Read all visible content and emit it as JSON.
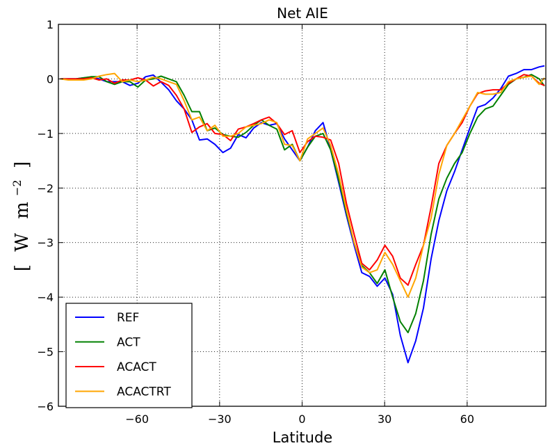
{
  "chart_data": {
    "type": "line",
    "title": "Net AIE",
    "xlabel": "Latitude",
    "ylabel": {
      "open": "[",
      "text": "W",
      "unit": "m",
      "exponent": "−2",
      "close": "]"
    },
    "xlim": [
      -88.6,
      88.6
    ],
    "ylim": [
      -6,
      1
    ],
    "xticks": [
      -60,
      -30,
      0,
      30,
      60
    ],
    "xtick_labels": [
      "−60",
      "−30",
      "0",
      "30",
      "60"
    ],
    "yticks": [
      1,
      0,
      -1,
      -2,
      -3,
      -4,
      -5,
      -6
    ],
    "ytick_labels": [
      "1",
      "0",
      "−1",
      "−2",
      "−3",
      "−4",
      "−5",
      "−6"
    ],
    "grid": true,
    "legend_position": "lower-left",
    "x": [
      -87.9,
      -85.0,
      -82.2,
      -79.4,
      -76.6,
      -73.8,
      -71.0,
      -68.2,
      -65.4,
      -62.6,
      -59.7,
      -56.9,
      -54.1,
      -51.3,
      -48.5,
      -45.7,
      -42.9,
      -40.1,
      -37.3,
      -34.5,
      -31.7,
      -28.8,
      -26.0,
      -23.2,
      -20.4,
      -17.6,
      -14.8,
      -12.0,
      -9.2,
      -6.4,
      -3.6,
      -0.8,
      2.0,
      4.8,
      7.6,
      10.4,
      13.3,
      16.1,
      18.9,
      21.7,
      24.5,
      27.3,
      30.1,
      32.9,
      35.7,
      38.5,
      41.3,
      44.1,
      46.9,
      49.7,
      52.6,
      55.4,
      58.2,
      61.0,
      63.8,
      66.6,
      69.4,
      72.2,
      75.0,
      77.8,
      80.6,
      83.4,
      86.2,
      88.1
    ],
    "series": [
      {
        "name": "REF",
        "color": "#0000ff",
        "values": [
          0.0,
          0.0,
          0.0,
          0.02,
          0.03,
          0.0,
          -0.05,
          -0.05,
          -0.05,
          -0.12,
          -0.08,
          0.04,
          0.07,
          -0.06,
          -0.2,
          -0.4,
          -0.55,
          -0.75,
          -1.12,
          -1.1,
          -1.2,
          -1.35,
          -1.27,
          -1.02,
          -1.08,
          -0.9,
          -0.8,
          -0.85,
          -0.82,
          -1.1,
          -1.3,
          -1.5,
          -1.25,
          -0.95,
          -0.8,
          -1.3,
          -1.9,
          -2.5,
          -3.05,
          -3.55,
          -3.62,
          -3.8,
          -3.65,
          -3.95,
          -4.7,
          -5.2,
          -4.8,
          -4.2,
          -3.3,
          -2.6,
          -2.05,
          -1.7,
          -1.3,
          -0.9,
          -0.52,
          -0.47,
          -0.35,
          -0.18,
          0.05,
          0.1,
          0.17,
          0.17,
          0.22,
          0.24
        ]
      },
      {
        "name": "ACT",
        "color": "#008000",
        "values": [
          0.0,
          0.0,
          0.0,
          0.02,
          0.04,
          0.04,
          -0.05,
          -0.1,
          -0.05,
          -0.05,
          -0.15,
          -0.02,
          0.0,
          0.05,
          0.0,
          -0.05,
          -0.3,
          -0.6,
          -0.6,
          -0.95,
          -0.9,
          -1.02,
          -1.05,
          -1.07,
          -0.98,
          -0.85,
          -0.75,
          -0.85,
          -0.92,
          -1.3,
          -1.2,
          -1.5,
          -1.25,
          -1.05,
          -1.0,
          -1.3,
          -1.85,
          -2.45,
          -3.0,
          -3.42,
          -3.55,
          -3.75,
          -3.5,
          -4.0,
          -4.45,
          -4.65,
          -4.3,
          -3.7,
          -2.85,
          -2.2,
          -1.82,
          -1.55,
          -1.35,
          -1.0,
          -0.7,
          -0.55,
          -0.5,
          -0.3,
          -0.1,
          0.0,
          0.03,
          0.08,
          0.0,
          -0.13
        ]
      },
      {
        "name": "ACACT",
        "color": "#ff0000",
        "values": [
          0.0,
          0.0,
          0.0,
          0.0,
          0.02,
          -0.02,
          0.0,
          -0.08,
          -0.02,
          -0.02,
          0.02,
          -0.02,
          -0.13,
          -0.05,
          -0.12,
          -0.3,
          -0.55,
          -0.98,
          -0.88,
          -0.82,
          -1.0,
          -1.02,
          -1.13,
          -0.92,
          -0.88,
          -0.82,
          -0.75,
          -0.7,
          -0.82,
          -1.02,
          -0.95,
          -1.35,
          -1.15,
          -1.05,
          -1.07,
          -1.12,
          -1.55,
          -2.28,
          -2.85,
          -3.38,
          -3.5,
          -3.32,
          -3.05,
          -3.25,
          -3.65,
          -3.78,
          -3.4,
          -3.05,
          -2.35,
          -1.55,
          -1.22,
          -1.0,
          -0.8,
          -0.5,
          -0.27,
          -0.22,
          -0.2,
          -0.2,
          -0.08,
          0.0,
          0.08,
          0.05,
          -0.08,
          -0.12
        ]
      },
      {
        "name": "ACACTRT",
        "color": "#ffa500",
        "values": [
          0.0,
          -0.02,
          -0.02,
          -0.02,
          0.0,
          0.05,
          0.08,
          0.1,
          -0.05,
          -0.02,
          -0.05,
          -0.02,
          0.03,
          0.0,
          -0.05,
          -0.1,
          -0.4,
          -0.75,
          -0.7,
          -0.95,
          -0.85,
          -1.05,
          -1.05,
          -1.0,
          -0.88,
          -0.85,
          -0.82,
          -0.75,
          -0.8,
          -1.2,
          -1.22,
          -1.5,
          -1.1,
          -1.0,
          -0.9,
          -1.22,
          -1.75,
          -2.4,
          -3.0,
          -3.45,
          -3.55,
          -3.5,
          -3.18,
          -3.4,
          -3.7,
          -4.0,
          -3.65,
          -3.05,
          -2.55,
          -1.75,
          -1.22,
          -1.0,
          -0.75,
          -0.5,
          -0.25,
          -0.28,
          -0.28,
          -0.25,
          -0.05,
          0.0,
          0.03,
          0.05,
          -0.1,
          0.02
        ]
      }
    ]
  }
}
